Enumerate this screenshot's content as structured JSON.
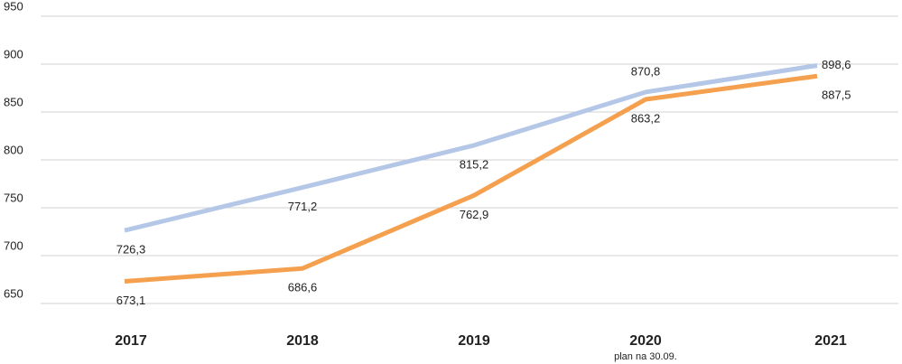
{
  "chart_data": {
    "type": "line",
    "categories": [
      "2017",
      "2018",
      "2019",
      "2020",
      "2021"
    ],
    "series": [
      {
        "color": "#b4c7e7",
        "values": [
          726.3,
          771.2,
          815.2,
          870.8,
          898.6
        ],
        "value_labels": [
          "726,3",
          "771,2",
          "815,2",
          "870,8",
          "898,6"
        ]
      },
      {
        "color": "#f4a04e",
        "values": [
          673.1,
          686.6,
          762.9,
          863.2,
          887.5
        ],
        "value_labels": [
          "673,1",
          "686,6",
          "762,9",
          "863,2",
          "887,5"
        ]
      }
    ],
    "annotations": [
      "plan na 30.09."
    ],
    "ylim": [
      650,
      950
    ],
    "yticks": [
      650,
      700,
      750,
      800,
      850,
      900,
      950
    ],
    "grid": true
  }
}
